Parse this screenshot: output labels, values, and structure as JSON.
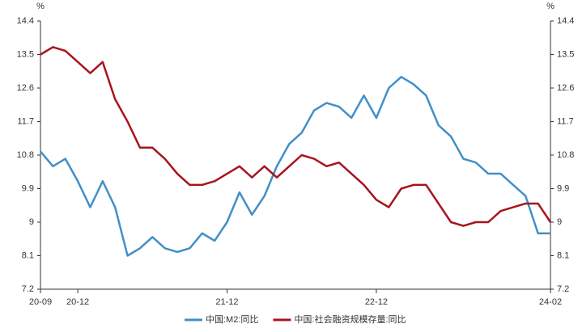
{
  "chart_data": {
    "type": "line",
    "categories": [
      "20-09",
      null,
      null,
      "20-12",
      null,
      null,
      null,
      null,
      null,
      null,
      null,
      null,
      null,
      null,
      null,
      "21-12",
      null,
      null,
      null,
      null,
      null,
      null,
      null,
      null,
      null,
      null,
      null,
      "22-12",
      null,
      null,
      null,
      null,
      null,
      null,
      null,
      null,
      null,
      null,
      null,
      null,
      null,
      "24-02"
    ],
    "series": [
      {
        "name": "中国:M2:同比",
        "color": "#428fc8",
        "values": [
          10.9,
          10.5,
          10.7,
          10.1,
          9.4,
          10.1,
          9.4,
          8.1,
          8.3,
          8.6,
          8.3,
          8.2,
          8.3,
          8.7,
          8.5,
          9.0,
          9.8,
          9.2,
          9.7,
          10.5,
          11.1,
          11.4,
          12.0,
          12.2,
          12.1,
          11.8,
          12.4,
          11.8,
          12.6,
          12.9,
          12.7,
          12.4,
          11.6,
          11.3,
          10.7,
          10.6,
          10.3,
          10.3,
          10.0,
          9.7,
          8.7,
          8.7
        ]
      },
      {
        "name": "中国:社会融资规模存量:同比",
        "color": "#a8141e",
        "values": [
          13.5,
          13.7,
          13.6,
          13.3,
          13.0,
          13.3,
          12.3,
          11.7,
          11.0,
          11.0,
          10.7,
          10.3,
          10.0,
          10.0,
          10.1,
          10.3,
          10.5,
          10.2,
          10.5,
          10.2,
          10.5,
          10.8,
          10.7,
          10.5,
          10.6,
          10.3,
          10.0,
          9.6,
          9.4,
          9.9,
          10.0,
          10.0,
          9.5,
          9.0,
          8.9,
          9.0,
          9.0,
          9.3,
          9.4,
          9.5,
          9.5,
          9.0
        ]
      }
    ],
    "y_unit": "%",
    "y2_unit": "%",
    "ylim": [
      7.2,
      14.4
    ],
    "yticks": [
      7.2,
      8.1,
      9,
      9.9,
      10.8,
      11.7,
      12.6,
      13.5,
      14.4
    ],
    "y2lim": [
      7.2,
      14.4
    ],
    "y2ticks": [
      7.2,
      8.1,
      9,
      9.9,
      10.8,
      11.7,
      12.6,
      13.5,
      14.4
    ],
    "grid": false,
    "legend": "bottom"
  }
}
